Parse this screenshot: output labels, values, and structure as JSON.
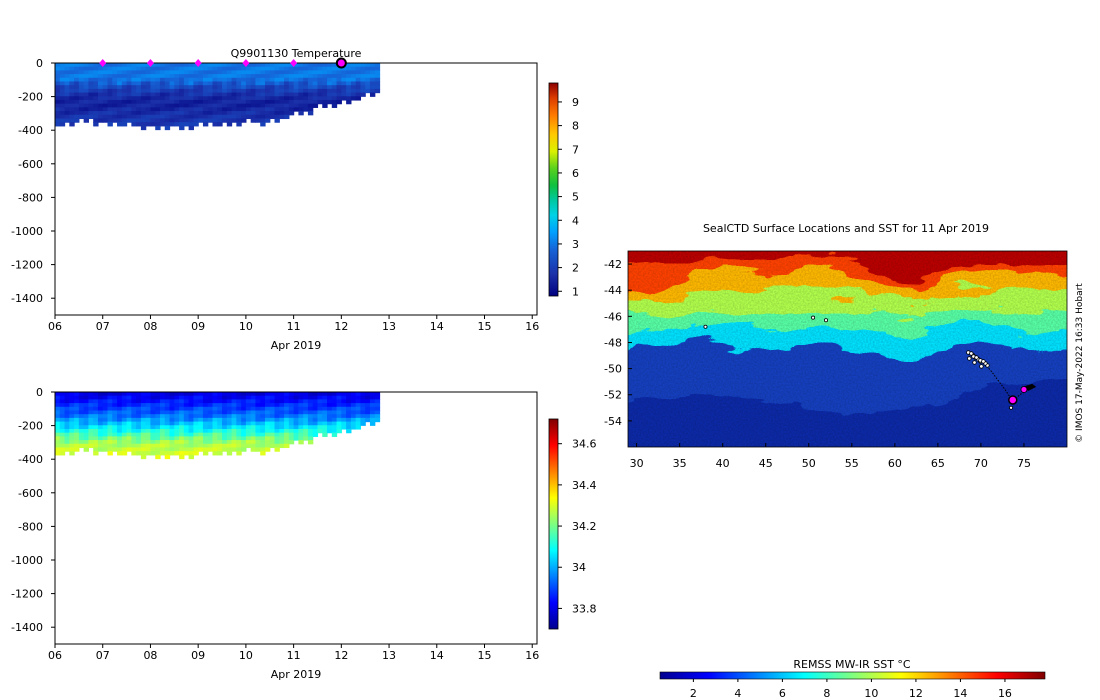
{
  "temperature_panel": {
    "title": "Q9901130  Temperature",
    "xlabel": "Apr 2019"
  },
  "salinity_panel": {
    "xlabel": "Apr 2019"
  },
  "map_panel": {
    "title": "SealCTD Surface Locations and SST for 11 Apr 2019",
    "credit": "© IMOS 17-May-2022 16:33 Hobart",
    "sst_colorbar_label": "REMSS MW-IR SST °C"
  },
  "colors": {
    "profile_marker": "#ff00ff",
    "axis": "#000000",
    "nodata": "#ffffff"
  },
  "chart_data": [
    {
      "id": "temperature-section",
      "type": "heatmap",
      "title": "Q9901130  Temperature",
      "xlabel": "Apr 2019",
      "ylabel": "",
      "xlim": [
        6,
        16.1
      ],
      "ylim": [
        -1500,
        0
      ],
      "xticks": [
        6,
        7,
        8,
        9,
        10,
        11,
        12,
        13,
        14,
        15,
        16
      ],
      "xtick_labels": [
        "06",
        "07",
        "08",
        "09",
        "10",
        "11",
        "12",
        "13",
        "14",
        "15",
        "16"
      ],
      "yticks": [
        0,
        -200,
        -400,
        -600,
        -800,
        -1000,
        -1200,
        -1400
      ],
      "colorbar": {
        "range": [
          0.8,
          9.8
        ],
        "ticks": [
          1,
          2,
          3,
          4,
          5,
          6,
          7,
          8,
          9
        ]
      },
      "profile_markers": [
        7,
        8,
        9,
        10,
        11
      ],
      "current_profile": 12,
      "data_x_range": [
        6.0,
        12.8
      ],
      "max_depth_by_day": [
        [
          6.0,
          370
        ],
        [
          6.5,
          330
        ],
        [
          7.0,
          350
        ],
        [
          7.5,
          360
        ],
        [
          8.0,
          370
        ],
        [
          8.5,
          375
        ],
        [
          9.0,
          360
        ],
        [
          9.5,
          350
        ],
        [
          10.0,
          345
        ],
        [
          10.5,
          330
        ],
        [
          11.0,
          300
        ],
        [
          11.3,
          270
        ],
        [
          11.6,
          240
        ],
        [
          12.0,
          220
        ],
        [
          12.3,
          200
        ],
        [
          12.8,
          175
        ]
      ],
      "profile": {
        "depths": [
          0,
          100,
          140,
          200,
          250,
          300,
          380
        ],
        "values": [
          3.0,
          3.0,
          2.2,
          1.6,
          1.4,
          1.7,
          1.9
        ]
      }
    },
    {
      "id": "salinity-section",
      "type": "heatmap",
      "title": "",
      "xlabel": "Apr 2019",
      "ylabel": "",
      "xlim": [
        6,
        16.1
      ],
      "ylim": [
        -1500,
        0
      ],
      "xticks": [
        6,
        7,
        8,
        9,
        10,
        11,
        12,
        13,
        14,
        15,
        16
      ],
      "xtick_labels": [
        "06",
        "07",
        "08",
        "09",
        "10",
        "11",
        "12",
        "13",
        "14",
        "15",
        "16"
      ],
      "yticks": [
        0,
        -200,
        -400,
        -600,
        -800,
        -1000,
        -1200,
        -1400
      ],
      "colorbar": {
        "range": [
          33.7,
          34.72
        ],
        "ticks": [
          33.8,
          34,
          34.2,
          34.4,
          34.6
        ],
        "tick_labels": [
          "33.8",
          "34",
          "34.2",
          "34.4",
          "34.6"
        ]
      },
      "data_x_range": [
        6.0,
        12.8
      ],
      "max_depth_by_day": [
        [
          6.0,
          370
        ],
        [
          6.5,
          330
        ],
        [
          7.0,
          350
        ],
        [
          7.5,
          360
        ],
        [
          8.0,
          370
        ],
        [
          8.5,
          375
        ],
        [
          9.0,
          360
        ],
        [
          9.5,
          350
        ],
        [
          10.0,
          345
        ],
        [
          10.5,
          330
        ],
        [
          11.0,
          300
        ],
        [
          11.3,
          270
        ],
        [
          11.6,
          240
        ],
        [
          12.0,
          220
        ],
        [
          12.3,
          200
        ],
        [
          12.8,
          175
        ]
      ],
      "profile": {
        "depths": [
          0,
          60,
          150,
          230,
          300,
          380
        ],
        "values": [
          33.78,
          33.85,
          33.95,
          34.1,
          34.25,
          34.3
        ]
      }
    },
    {
      "id": "sst-map",
      "type": "heatmap",
      "title": "SealCTD Surface Locations and SST for 11 Apr 2019",
      "xlim": [
        29,
        80
      ],
      "ylim": [
        -56,
        -41
      ],
      "xticks": [
        30,
        35,
        40,
        45,
        50,
        55,
        60,
        65,
        70,
        75
      ],
      "yticks": [
        -42,
        -44,
        -46,
        -48,
        -50,
        -52,
        -54
      ],
      "colorbar": {
        "label": "REMSS MW-IR SST °C",
        "range": [
          0.5,
          17.8
        ],
        "ticks": [
          2,
          4,
          6,
          8,
          10,
          12,
          14,
          16
        ]
      },
      "track": [
        [
          69.0,
          -49.0
        ],
        [
          69.6,
          -49.3
        ],
        [
          70.4,
          -49.6
        ],
        [
          71.2,
          -50.2
        ],
        [
          72.0,
          -50.9
        ],
        [
          72.8,
          -51.6
        ],
        [
          73.4,
          -52.2
        ],
        [
          73.8,
          -52.5
        ],
        [
          74.5,
          -52.0
        ],
        [
          75.3,
          -51.7
        ]
      ],
      "profile_locations": [
        [
          73.7,
          -52.4
        ],
        [
          75.0,
          -51.6
        ]
      ],
      "tag_locations": [
        [
          38.0,
          -46.8
        ],
        [
          50.5,
          -46.1
        ],
        [
          52.0,
          -46.3
        ],
        [
          73.5,
          -53.0
        ]
      ]
    }
  ]
}
